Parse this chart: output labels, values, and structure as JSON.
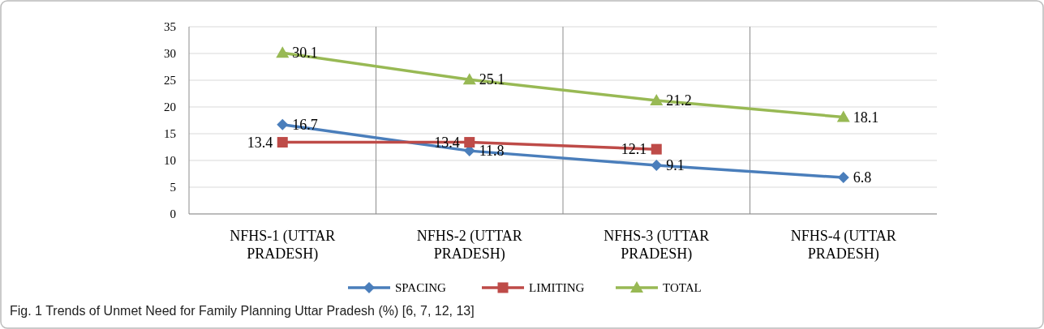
{
  "chart_data": {
    "type": "line",
    "categories": [
      "NFHS-1 (UTTAR PRADESH)",
      "NFHS-2 (UTTAR PRADESH)",
      "NFHS-3 (UTTAR PRADESH)",
      "NFHS-4 (UTTAR PRADESH)"
    ],
    "series": [
      {
        "name": "SPACING",
        "color": "#4a7ebb",
        "marker": "diamond",
        "values": [
          16.7,
          11.8,
          9.1,
          6.8
        ]
      },
      {
        "name": "LIMITING",
        "color": "#be4b48",
        "marker": "square",
        "values": [
          13.4,
          13.4,
          12.1,
          null
        ]
      },
      {
        "name": "TOTAL",
        "color": "#98b954",
        "marker": "triangle",
        "values": [
          30.1,
          25.1,
          21.2,
          18.1
        ]
      }
    ],
    "ylim": [
      0,
      35
    ],
    "yticks": [
      0,
      5,
      10,
      15,
      20,
      25,
      30,
      35
    ],
    "grid": true,
    "legend": "bottom",
    "data_labels": true,
    "annotations": [
      "Fig. 1 Trends of Unmet Need for Family Planning Uttar Pradesh (%) [6, 7, 12, 13]"
    ]
  }
}
